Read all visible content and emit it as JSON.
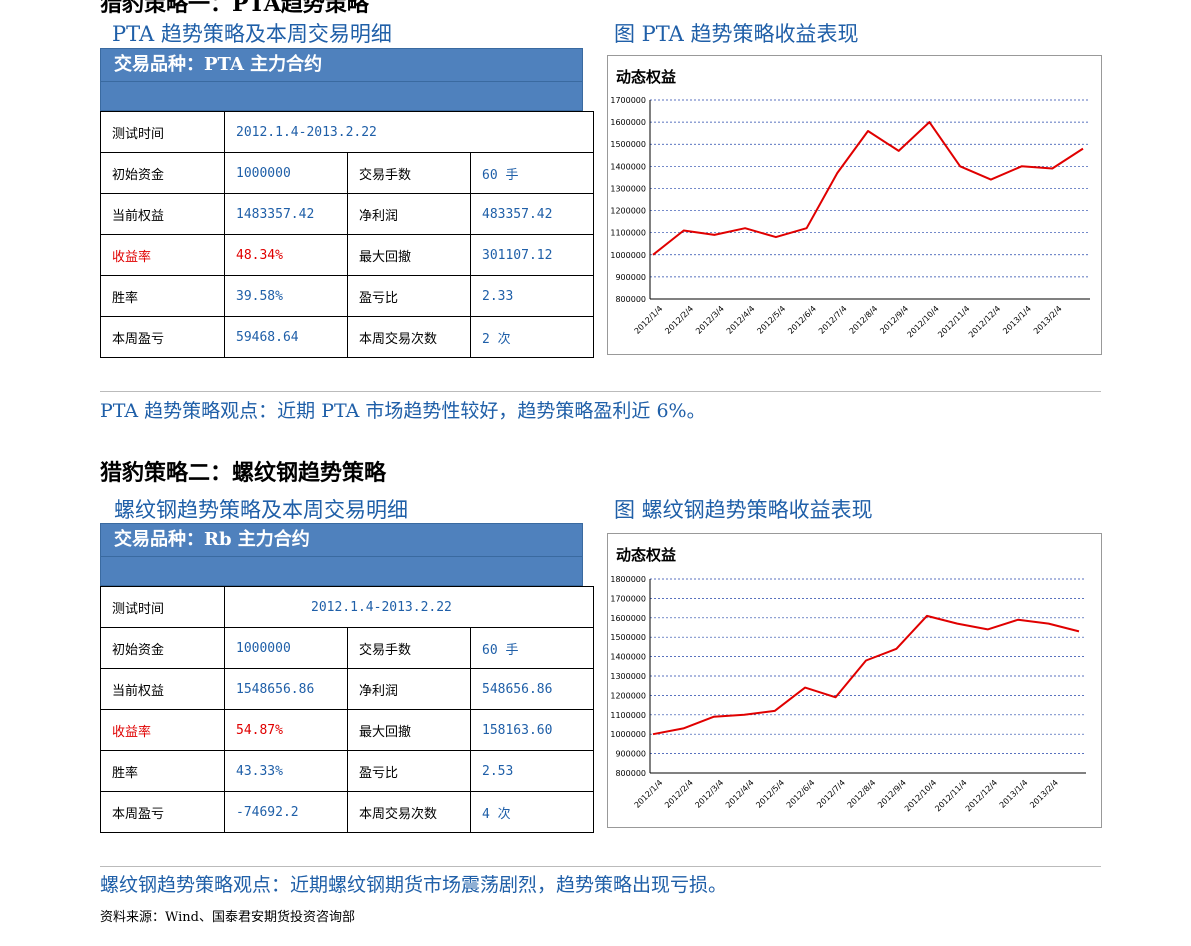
{
  "top_heading": "猎豹策略一：PTA趋势策略",
  "strategy1": {
    "left_title": "PTA 趋势策略及本周交易明细",
    "right_title": "图  PTA 趋势策略收益表现",
    "variety": "交易品种：PTA 主力合约",
    "rows": [
      {
        "k1": "测试时间",
        "v1": "2012.1.4-2013.2.22"
      },
      {
        "k1": "初始资金",
        "v1": "1000000",
        "k2": "交易手数",
        "v2": "60 手"
      },
      {
        "k1": "当前权益",
        "v1": "1483357.42",
        "k2": "净利润",
        "v2": "483357.42"
      },
      {
        "k1": "收益率",
        "v1": "48.34%",
        "k2": "最大回撤",
        "v2": "301107.12"
      },
      {
        "k1": "胜率",
        "v1": "39.58%",
        "k2": "盈亏比",
        "v2": "2.33"
      },
      {
        "k1": "本周盈亏",
        "v1": "59468.64",
        "k2": "本周交易次数",
        "v2": "2 次"
      }
    ],
    "note": "PTA 趋势策略观点：近期 PTA 市场趋势性较好，趋势策略盈利近 6%。"
  },
  "section2_heading": "猎豹策略二：螺纹钢趋势策略",
  "strategy2": {
    "left_title": "螺纹钢趋势策略及本周交易明细",
    "right_title": "图  螺纹钢趋势策略收益表现",
    "variety": "交易品种：Rb 主力合约",
    "rows": [
      {
        "k1": "测试时间",
        "v1": "2012.1.4-2013.2.22"
      },
      {
        "k1": "初始资金",
        "v1": "1000000",
        "k2": "交易手数",
        "v2": "60 手"
      },
      {
        "k1": "当前权益",
        "v1": "1548656.86",
        "k2": "净利润",
        "v2": "548656.86"
      },
      {
        "k1": "收益率",
        "v1": "54.87%",
        "k2": "最大回撤",
        "v2": "158163.60"
      },
      {
        "k1": "胜率",
        "v1": "43.33%",
        "k2": "盈亏比",
        "v2": "2.53"
      },
      {
        "k1": "本周盈亏",
        "v1": "-74692.2",
        "k2": "本周交易次数",
        "v2": "4 次"
      }
    ],
    "note": "螺纹钢趋势策略观点：近期螺纹钢期货市场震荡剧烈，趋势策略出现亏损。"
  },
  "source": "资料来源：Wind、国泰君安期货投资咨询部",
  "chart_data": [
    {
      "type": "line",
      "title": "动态权益",
      "color": "#e00000",
      "ylim": [
        800000,
        1700000
      ],
      "yticks": [
        "800000",
        "900000",
        "1000000",
        "1100000",
        "1200000",
        "1300000",
        "1400000",
        "1500000",
        "1600000",
        "1700000"
      ],
      "x": [
        "2012/1/4",
        "2012/2/4",
        "2012/3/4",
        "2012/4/4",
        "2012/5/4",
        "2012/6/4",
        "2012/7/4",
        "2012/8/4",
        "2012/9/4",
        "2012/10/4",
        "2012/11/4",
        "2012/12/4",
        "2013/1/4",
        "2013/2/4",
        "2013/2/22"
      ],
      "values": [
        1000000,
        1110000,
        1090000,
        1120000,
        1080000,
        1120000,
        1370000,
        1560000,
        1470000,
        1600000,
        1400000,
        1340000,
        1400000,
        1390000,
        1480000
      ],
      "grid": true
    },
    {
      "type": "line",
      "title": "动态权益",
      "color": "#e00000",
      "ylim": [
        800000,
        1800000
      ],
      "yticks": [
        "800000",
        "900000",
        "1000000",
        "1100000",
        "1200000",
        "1300000",
        "1400000",
        "1500000",
        "1600000",
        "1700000",
        "1800000"
      ],
      "x": [
        "2012/1/4",
        "2012/2/4",
        "2012/3/4",
        "2012/4/4",
        "2012/5/4",
        "2012/6/4",
        "2012/7/4",
        "2012/8/4",
        "2012/9/4",
        "2012/10/4",
        "2012/11/4",
        "2012/12/4",
        "2013/1/4",
        "2013/2/4",
        "2013/2/22"
      ],
      "values": [
        1000000,
        1030000,
        1090000,
        1100000,
        1120000,
        1240000,
        1190000,
        1380000,
        1440000,
        1610000,
        1570000,
        1540000,
        1590000,
        1570000,
        1530000
      ],
      "grid": true
    }
  ]
}
